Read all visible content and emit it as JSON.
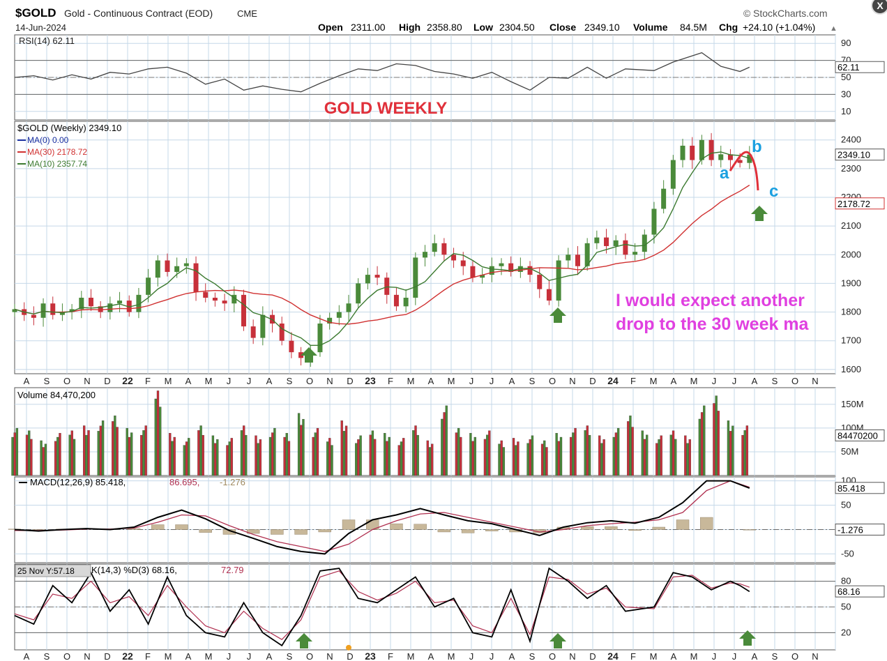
{
  "header": {
    "symbol": "$GOLD",
    "name": "Gold - Continuous Contract (EOD)",
    "exchange": "CME",
    "date": "14-Jun-2024",
    "brand": "StockCharts.com",
    "open_label": "Open",
    "open": "2311.00",
    "high_label": "High",
    "high": "2358.80",
    "low_label": "Low",
    "low": "2304.50",
    "close_label": "Close",
    "close": "2349.10",
    "volume_label": "Volume",
    "volume": "84.5M",
    "chg_label": "Chg",
    "chg": "+24.10 (+1.04%)"
  },
  "annotations": {
    "title": "GOLD WEEKLY",
    "expect_line1": "I would expect another",
    "expect_line2": "drop to the 30 week ma",
    "wave_a": "a",
    "wave_b": "b",
    "wave_c": "c"
  },
  "colors": {
    "up": "#4a8a3a",
    "down": "#c7303a",
    "ma30": "#d03030",
    "ma10": "#3c7a30",
    "ma0": "#1a2fa0",
    "grid": "#c5d8e8",
    "annot_red": "#e0303a",
    "annot_magenta": "#e040e0",
    "annot_blue": "#1ba0e0",
    "arrow": "#4a8a3a",
    "macd": "#000000",
    "signal": "#b03050",
    "hist": "#c8b89a"
  },
  "time_axis": [
    "A",
    "S",
    "O",
    "N",
    "D",
    "22",
    "F",
    "M",
    "A",
    "M",
    "J",
    "J",
    "A",
    "S",
    "O",
    "N",
    "D",
    "23",
    "F",
    "M",
    "A",
    "M",
    "J",
    "J",
    "A",
    "S",
    "O",
    "N",
    "D",
    "24",
    "F",
    "M",
    "A",
    "M",
    "J",
    "J",
    "A",
    "S",
    "O",
    "N"
  ],
  "chart_data": [
    {
      "type": "line",
      "panel": "rsi",
      "title": "RSI(14) 62.11",
      "y_ticks": [
        10,
        30,
        50,
        70,
        90
      ],
      "ylim": [
        0,
        100
      ],
      "reference_lines": [
        30,
        50,
        70
      ],
      "last_value_label": "62.11",
      "x_weeks": [
        0,
        4,
        8,
        12,
        16,
        20,
        24,
        28,
        32,
        36,
        40,
        44,
        48,
        52,
        56,
        60,
        64,
        68,
        72,
        76,
        80,
        84,
        88,
        92,
        96,
        100,
        104,
        108,
        112,
        116,
        120,
        124,
        128,
        134,
        138,
        144,
        148,
        152,
        154
      ],
      "values": [
        50,
        52,
        47,
        53,
        48,
        56,
        54,
        60,
        62,
        55,
        42,
        48,
        35,
        40,
        36,
        33,
        43,
        52,
        60,
        58,
        66,
        64,
        57,
        54,
        49,
        56,
        45,
        35,
        50,
        49,
        62,
        49,
        60,
        58,
        68,
        79,
        63,
        57,
        62
      ]
    },
    {
      "type": "candlestick",
      "panel": "price",
      "title": "$GOLD (Weekly) 2349.10",
      "legend": [
        {
          "name": "MA(0) 0.00",
          "color": "#1a2fa0"
        },
        {
          "name": "MA(30) 2178.72",
          "color": "#d03030"
        },
        {
          "name": "MA(10) 2357.74",
          "color": "#3c7a30"
        }
      ],
      "y_ticks": [
        1600,
        1700,
        1800,
        1900,
        2000,
        2100,
        2200,
        2300,
        2400
      ],
      "ylim": [
        1585,
        2465
      ],
      "last_price_label": "2349.10",
      "ma30_label": "2178.72",
      "x_weeks": [
        0,
        2,
        4,
        6,
        8,
        10,
        12,
        14,
        16,
        18,
        20,
        22,
        24,
        26,
        28,
        30,
        32,
        34,
        36,
        38,
        40,
        42,
        44,
        46,
        48,
        50,
        52,
        54,
        56,
        58,
        60,
        62,
        64,
        66,
        68,
        70,
        72,
        74,
        76,
        78,
        80,
        82,
        84,
        86,
        88,
        90,
        92,
        94,
        96,
        98,
        100,
        102,
        104,
        106,
        108,
        110,
        112,
        114,
        116,
        118,
        120,
        122,
        124,
        126,
        128,
        130,
        132,
        134,
        136,
        138,
        140,
        142,
        144,
        146,
        148,
        150,
        152,
        154
      ],
      "close": [
        1810,
        1790,
        1780,
        1830,
        1790,
        1800,
        1810,
        1850,
        1820,
        1800,
        1830,
        1840,
        1800,
        1860,
        1920,
        1980,
        1940,
        1960,
        1970,
        1870,
        1850,
        1840,
        1830,
        1860,
        1750,
        1710,
        1790,
        1760,
        1700,
        1660,
        1640,
        1660,
        1760,
        1780,
        1800,
        1830,
        1900,
        1930,
        1920,
        1860,
        1820,
        1850,
        1990,
        2010,
        2040,
        2000,
        1980,
        1960,
        1920,
        1930,
        1960,
        1970,
        1940,
        1960,
        1930,
        1880,
        1840,
        1980,
        2000,
        1960,
        2040,
        2060,
        2030,
        2050,
        2000,
        2010,
        2070,
        2160,
        2230,
        2330,
        2380,
        2330,
        2400,
        2330,
        2350,
        2330,
        2320,
        2349
      ]
    },
    {
      "type": "bar",
      "panel": "volume",
      "title": "Volume 84,470,200",
      "y_ticks": [
        "50M",
        "100M",
        "150M"
      ],
      "ylim": [
        0,
        185
      ],
      "unit": "M",
      "last_value_label": "84470200",
      "x_weeks": [
        0,
        3,
        6,
        9,
        12,
        15,
        18,
        21,
        24,
        27,
        30,
        33,
        36,
        39,
        42,
        45,
        48,
        51,
        54,
        57,
        60,
        63,
        66,
        69,
        72,
        75,
        78,
        81,
        84,
        87,
        90,
        93,
        96,
        99,
        102,
        105,
        108,
        111,
        114,
        117,
        120,
        123,
        126,
        129,
        132,
        135,
        138,
        141,
        144,
        147,
        150,
        153
      ],
      "values": [
        95,
        90,
        70,
        85,
        90,
        100,
        110,
        120,
        95,
        100,
        170,
        85,
        75,
        100,
        80,
        75,
        100,
        80,
        95,
        85,
        125,
        95,
        75,
        110,
        80,
        90,
        85,
        75,
        100,
        70,
        140,
        95,
        85,
        90,
        70,
        75,
        80,
        70,
        85,
        95,
        100,
        80,
        95,
        120,
        90,
        80,
        90,
        80,
        140,
        160,
        110,
        100
      ]
    },
    {
      "type": "line",
      "panel": "macd",
      "title": "MACD(12,26,9) 85.418, 86.695, -1.276",
      "legend_macd": "MACD(12,26,9) 85.418",
      "legend_signal": "86.695",
      "legend_hist": "-1.276",
      "y_ticks": [
        -50,
        0,
        50,
        100
      ],
      "ylim": [
        -68,
        108
      ],
      "macd_label": "85.418",
      "hist_label": "-1.276",
      "x_weeks": [
        0,
        5,
        10,
        15,
        20,
        25,
        30,
        35,
        40,
        45,
        50,
        55,
        60,
        65,
        70,
        75,
        80,
        85,
        90,
        95,
        100,
        105,
        110,
        115,
        120,
        125,
        130,
        135,
        140,
        145,
        150,
        154
      ],
      "series": [
        {
          "values": [
            0,
            -3,
            0,
            2,
            0,
            5,
            25,
            40,
            22,
            -2,
            -18,
            -35,
            -45,
            -50,
            -8,
            20,
            30,
            43,
            30,
            18,
            12,
            0,
            -12,
            5,
            14,
            18,
            13,
            25,
            55,
            100,
            100,
            85
          ]
        },
        {
          "values": [
            -2,
            -2,
            -1,
            1,
            1,
            3,
            15,
            30,
            28,
            8,
            -10,
            -25,
            -35,
            -45,
            -30,
            0,
            18,
            32,
            35,
            25,
            15,
            5,
            -5,
            0,
            8,
            12,
            15,
            20,
            35,
            80,
            100,
            87
          ]
        },
        {
          "values": [
            1,
            -1,
            1,
            0,
            0,
            2,
            10,
            10,
            -6,
            -10,
            -8,
            -10,
            -10,
            -5,
            20,
            20,
            12,
            11,
            -5,
            -7,
            -3,
            -5,
            -7,
            5,
            6,
            6,
            -2,
            5,
            20,
            25,
            0,
            -1
          ]
        }
      ]
    },
    {
      "type": "line",
      "panel": "stochastic",
      "title": "%K(14,3) %D(3) 68.16, 72.79",
      "tooltip": "25 Nov Y:57.18",
      "legend_k": "K(14,3) %D(3) 68.16,",
      "legend_d": "72.79",
      "y_ticks": [
        20,
        50,
        80
      ],
      "ylim": [
        0,
        100
      ],
      "reference_lines": [
        20,
        50,
        80
      ],
      "last_value_label": "68.16",
      "x_weeks": [
        0,
        4,
        8,
        12,
        16,
        20,
        24,
        28,
        32,
        36,
        40,
        44,
        48,
        52,
        56,
        60,
        64,
        68,
        72,
        76,
        80,
        84,
        88,
        92,
        96,
        100,
        104,
        108,
        112,
        116,
        120,
        124,
        128,
        134,
        138,
        142,
        146,
        150,
        152,
        154
      ],
      "series": [
        {
          "values": [
            40,
            30,
            75,
            55,
            90,
            45,
            70,
            30,
            85,
            40,
            20,
            15,
            55,
            20,
            5,
            40,
            92,
            95,
            60,
            55,
            70,
            85,
            50,
            60,
            20,
            15,
            70,
            10,
            95,
            80,
            60,
            75,
            45,
            50,
            90,
            85,
            70,
            80,
            75,
            68
          ]
        },
        {
          "values": [
            42,
            35,
            65,
            60,
            80,
            55,
            62,
            40,
            75,
            50,
            28,
            20,
            45,
            25,
            12,
            35,
            85,
            92,
            68,
            58,
            66,
            80,
            55,
            58,
            28,
            20,
            60,
            18,
            85,
            82,
            65,
            72,
            50,
            48,
            85,
            87,
            72,
            78,
            77,
            73
          ]
        }
      ]
    }
  ]
}
